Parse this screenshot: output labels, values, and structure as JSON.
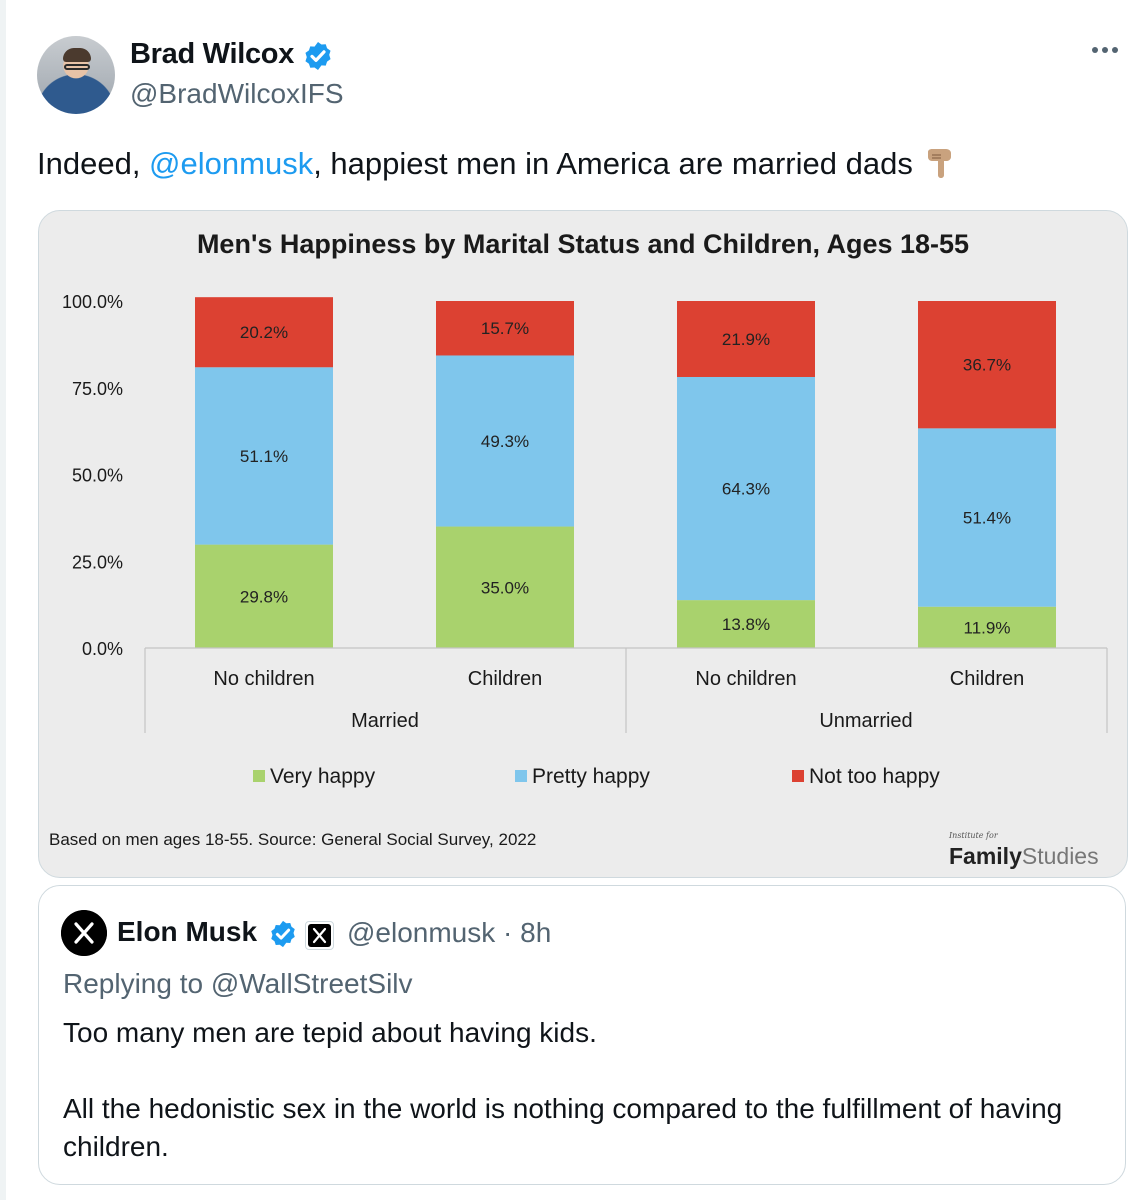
{
  "tweet": {
    "author_name": "Brad Wilcox",
    "author_handle": "@BradWilcoxIFS",
    "text_before": "Indeed, ",
    "mention": "@elonmusk",
    "text_after": ", happiest men in America are married dads"
  },
  "chart_data": {
    "type": "bar",
    "stacked": true,
    "title": "Men's Happiness by Marital Status and Children, Ages 18-55",
    "groups": [
      "Married",
      "Married",
      "Unmarried",
      "Unmarried"
    ],
    "group_labels": [
      "Married",
      "Unmarried"
    ],
    "categories": [
      "No children",
      "Children",
      "No children",
      "Children"
    ],
    "series": [
      {
        "name": "Very happy",
        "color": "#a9d26d",
        "values": [
          29.8,
          35.0,
          13.8,
          11.9
        ],
        "labels": [
          "29.8%",
          "35.0%",
          "13.8%",
          "11.9%"
        ]
      },
      {
        "name": "Pretty happy",
        "color": "#7fc6ec",
        "values": [
          51.1,
          49.3,
          64.3,
          51.4
        ],
        "labels": [
          "51.1%",
          "49.3%",
          "64.3%",
          "51.4%"
        ]
      },
      {
        "name": "Not too happy",
        "color": "#dc4132",
        "values": [
          20.2,
          15.7,
          21.9,
          36.7
        ],
        "labels": [
          "20.2%",
          "15.7%",
          "21.9%",
          "36.7%"
        ]
      }
    ],
    "yticks": [
      "0.0%",
      "25.0%",
      "50.0%",
      "75.0%",
      "100.0%"
    ],
    "ylim": [
      0,
      100
    ],
    "grid": false,
    "legend_position": "bottom",
    "footnote": "Based on men ages 18-55. Source: General Social Survey, 2022",
    "logo_small": "Institute for",
    "logo_main": "Family",
    "logo_sub": "Studies"
  },
  "quote": {
    "author_name": "Elon Musk",
    "author_handle": "@elonmusk",
    "time": "· 8h",
    "replying_to": "Replying to @WallStreetSilv",
    "paragraph1": "Too many men are tepid about having kids.",
    "paragraph2": "All the hedonistic sex in the world is nothing compared to the fulfillment of having children."
  },
  "icons": {
    "verified": "verified-badge-icon",
    "more": "more-options-icon",
    "finger": "pointing-down-emoji",
    "x_logo": "x-logo-icon"
  }
}
